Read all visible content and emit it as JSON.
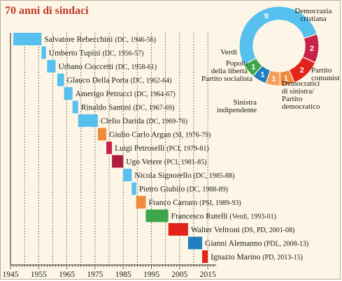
{
  "title": "70 anni di sindaci",
  "chart_data": [
    {
      "type": "gantt",
      "x_ticks": [
        1945,
        1955,
        1965,
        1975,
        1985,
        1995,
        2005,
        2015
      ],
      "xlim": [
        1945,
        2018
      ],
      "grid": "vertical dotted lines every 5 years",
      "bars": [
        {
          "name": "Salvatore Rebecchini",
          "detail": "(DC, 1946-56)",
          "start": 1946,
          "end": 1956,
          "color": "#56c1ee"
        },
        {
          "name": "Umberto Tupini",
          "detail": "(DC, 1956-57)",
          "start": 1956,
          "end": 1957.6,
          "color": "#56c1ee"
        },
        {
          "name": "Urbano Cioccetti",
          "detail": "(DC, 1958-61)",
          "start": 1958,
          "end": 1961,
          "color": "#56c1ee"
        },
        {
          "name": "Glauco Della Porta",
          "detail": "(DC, 1962-64)",
          "start": 1961.6,
          "end": 1964,
          "color": "#56c1ee"
        },
        {
          "name": "Amerigo Petrucci",
          "detail": "(DC, 1964-67)",
          "start": 1964,
          "end": 1967,
          "color": "#56c1ee"
        },
        {
          "name": "Rinaldo Santini",
          "detail": "(DC, 1967-69)",
          "start": 1967,
          "end": 1969,
          "color": "#56c1ee"
        },
        {
          "name": "Clelio Darida",
          "detail": "(DC, 1969-76)",
          "start": 1969,
          "end": 1976,
          "color": "#56c1ee"
        },
        {
          "name": "Giulio Carlo Argan",
          "detail": "(SI, 1976-79)",
          "start": 1976,
          "end": 1979,
          "color": "#f08a3c"
        },
        {
          "name": "Luigi Petroselli",
          "detail": "(PCI, 1979-81)",
          "start": 1979,
          "end": 1981,
          "color": "#c8224a"
        },
        {
          "name": "Ugo Vetere",
          "detail": "(PCI, 1981-85)",
          "start": 1981,
          "end": 1985,
          "color": "#b01e3e"
        },
        {
          "name": "Nicola Signorello",
          "detail": "(DC, 1985-88)",
          "start": 1985,
          "end": 1988,
          "color": "#56c1ee"
        },
        {
          "name": "Pietro Giubilo",
          "detail": "(DC, 1988-89)",
          "start": 1988,
          "end": 1989.6,
          "color": "#56c1ee"
        },
        {
          "name": "Franco Carraro",
          "detail": "(PSI, 1989-93)",
          "start": 1989.6,
          "end": 1993,
          "color": "#f08a3c"
        },
        {
          "name": "Francesco Rutelli",
          "detail": "(Verdi, 1993-01)",
          "start": 1993,
          "end": 2001,
          "color": "#3ea64a"
        },
        {
          "name": "Walter Veltroni",
          "detail": "(DS, PD, 2001-08)",
          "start": 2001,
          "end": 2008,
          "color": "#e2231a"
        },
        {
          "name": "Gianni Alemanno",
          "detail": "(PDL, 2008-13)",
          "start": 2008,
          "end": 2013,
          "color": "#1f7fc0"
        },
        {
          "name": "Ignazio Marino",
          "detail": "(PD, 2013-15)",
          "start": 2013,
          "end": 2015,
          "color": "#e2231a"
        }
      ]
    },
    {
      "type": "pie",
      "variant": "donut",
      "total": 17,
      "slices": [
        {
          "label": "Democrazia cristiana",
          "value": 9,
          "color": "#56c1ee"
        },
        {
          "label": "Partito comunista",
          "value": 2,
          "color": "#c8224a"
        },
        {
          "label": "Democratici di sinistra/ Partito democratico",
          "value": 2,
          "color": "#e2231a"
        },
        {
          "label": "Sinistra indipendente",
          "value": 1,
          "color": "#f08a3c"
        },
        {
          "label": "Partito socialista",
          "value": 1,
          "color": "#f5a05a"
        },
        {
          "label": "Popolo della libertà",
          "value": 1,
          "color": "#1f7fc0"
        },
        {
          "label": "Verdi",
          "value": 1,
          "color": "#3ea64a"
        }
      ],
      "label_lines": {
        "dc": [
          "Democrazia",
          "cristiana"
        ],
        "pc": [
          "Partito",
          "comunista"
        ],
        "ds": [
          "Democratici",
          "di sinistra/",
          "Partito",
          "democratico"
        ],
        "si": [
          "Sinistra",
          "indipendente"
        ],
        "ps": [
          "Partito socialista"
        ],
        "pdl": [
          "Popolo",
          "della libertà"
        ],
        "verdi": [
          "Verdi"
        ]
      }
    }
  ]
}
